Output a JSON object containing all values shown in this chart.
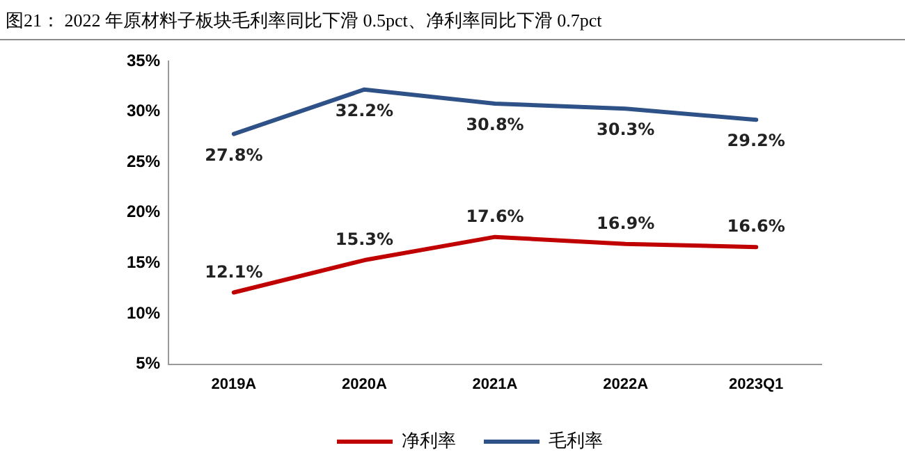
{
  "chart_data": {
    "type": "line",
    "title": "图21：  2022 年原材料子板块毛利率同比下滑 0.5pct、净利率同比下滑 0.7pct",
    "categories": [
      "2019A",
      "2020A",
      "2021A",
      "2022A",
      "2023Q1"
    ],
    "series": [
      {
        "name": "净利率",
        "color": "#c00000",
        "values": [
          12.1,
          15.3,
          17.6,
          16.9,
          16.6
        ],
        "value_labels": [
          "12.1%",
          "15.3%",
          "17.6%",
          "16.9%",
          "16.6%"
        ]
      },
      {
        "name": "毛利率",
        "color": "#2e5187",
        "values": [
          27.8,
          32.2,
          30.8,
          30.3,
          29.2
        ],
        "value_labels": [
          "27.8%",
          "32.2%",
          "30.8%",
          "30.3%",
          "29.2%"
        ]
      }
    ],
    "ylim": [
      5,
      35
    ],
    "yticks": [
      {
        "value": 5,
        "label": "5%"
      },
      {
        "value": 10,
        "label": "10%"
      },
      {
        "value": 15,
        "label": "15%"
      },
      {
        "value": 20,
        "label": "20%"
      },
      {
        "value": 25,
        "label": "25%"
      },
      {
        "value": 30,
        "label": "30%"
      },
      {
        "value": 35,
        "label": "35%"
      }
    ],
    "grid": false,
    "legend": "bottom",
    "marker": "none",
    "line_style": "solid"
  }
}
